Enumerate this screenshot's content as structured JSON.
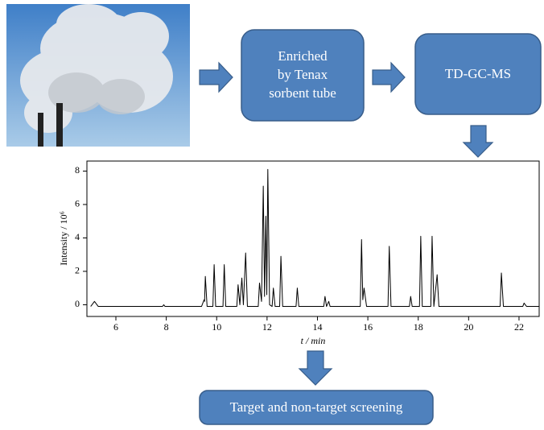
{
  "nodes": [
    {
      "lines": [
        "Enriched",
        "by Tenax",
        "sorbent tube"
      ]
    },
    {
      "label": "TD-GC-MS"
    },
    {
      "label": "Target and non-target screening"
    }
  ],
  "chart_data": {
    "type": "line",
    "xlabel": "t / min",
    "ylabel": "Intensity / 10⁶",
    "color": "#000000",
    "x": [
      5.0,
      5.1,
      5.15,
      5.3,
      7.85,
      7.9,
      7.95,
      9.4,
      9.5,
      9.52,
      9.55,
      9.62,
      9.85,
      9.9,
      9.96,
      10.25,
      10.3,
      10.36,
      10.8,
      10.85,
      10.92,
      11.0,
      11.06,
      11.15,
      11.22,
      11.65,
      11.7,
      11.78,
      11.85,
      11.9,
      11.95,
      11.99,
      12.03,
      12.1,
      12.2,
      12.25,
      12.32,
      12.5,
      12.55,
      12.62,
      13.15,
      13.2,
      13.26,
      14.25,
      14.3,
      14.36,
      14.45,
      14.5,
      15.7,
      15.75,
      15.8,
      15.85,
      15.95,
      16.8,
      16.85,
      16.92,
      17.65,
      17.7,
      17.76,
      18.05,
      18.1,
      18.16,
      18.5,
      18.55,
      18.62,
      18.75,
      18.82,
      21.25,
      21.3,
      21.38,
      22.15,
      22.2,
      22.3,
      22.8
    ],
    "values": [
      -0.1,
      0.1,
      0.2,
      -0.1,
      -0.1,
      0.0,
      -0.1,
      -0.1,
      0.3,
      0.2,
      1.7,
      -0.1,
      -0.1,
      2.4,
      -0.1,
      -0.1,
      2.4,
      -0.1,
      -0.1,
      1.2,
      0.0,
      1.6,
      0.0,
      3.1,
      -0.1,
      -0.1,
      1.3,
      0.2,
      7.1,
      0.5,
      5.3,
      0.6,
      8.1,
      0.0,
      -0.1,
      1.0,
      -0.1,
      -0.1,
      2.9,
      -0.1,
      -0.1,
      1.0,
      -0.1,
      -0.1,
      0.5,
      -0.1,
      0.2,
      -0.1,
      -0.1,
      3.9,
      0.3,
      1.0,
      -0.1,
      -0.1,
      3.5,
      -0.1,
      -0.1,
      0.5,
      -0.1,
      -0.1,
      4.1,
      -0.1,
      -0.1,
      4.1,
      -0.1,
      1.8,
      -0.1,
      -0.1,
      1.9,
      -0.1,
      -0.1,
      0.1,
      -0.1,
      -0.1
    ],
    "xlim": [
      4.85,
      22.8
    ],
    "ylim": [
      -0.7,
      8.6
    ],
    "xticks": [
      6,
      8,
      10,
      12,
      14,
      16,
      18,
      20,
      22
    ],
    "yticks": [
      0,
      2,
      4,
      6,
      8
    ]
  }
}
